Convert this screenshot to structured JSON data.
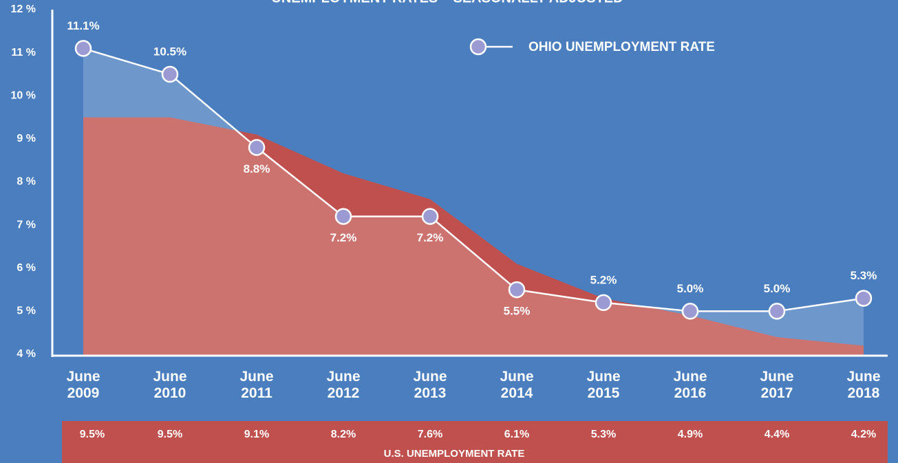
{
  "chart_data": {
    "type": "area-line",
    "title": "UNEMPLOYMENT RATES – SEASONALLY ADJUSTED",
    "categories": [
      "June 2009",
      "June 2010",
      "June 2011",
      "June 2012",
      "June 2013",
      "June 2014",
      "June 2015",
      "June 2016",
      "June 2017",
      "June 2018"
    ],
    "series": [
      {
        "name": "OHIO UNEMPLOYMENT RATE",
        "color": "#9c9ad2",
        "values": [
          11.1,
          10.5,
          8.8,
          7.2,
          7.2,
          5.5,
          5.2,
          5.0,
          5.0,
          5.3
        ],
        "value_labels": [
          "11.1%",
          "10.5%",
          "8.8%",
          "7.2%",
          "7.2%",
          "5.5%",
          "5.2%",
          "5.0%",
          "5.0%",
          "5.3%"
        ]
      },
      {
        "name": "U.S. UNEMPLOYMENT RATE",
        "color": "#c0504d",
        "values": [
          9.5,
          9.5,
          9.1,
          8.2,
          7.6,
          6.1,
          5.3,
          4.9,
          4.4,
          4.2
        ],
        "value_labels": [
          "9.5%",
          "9.5%",
          "9.1%",
          "8.2%",
          "7.6%",
          "6.1%",
          "5.3%",
          "4.9%",
          "4.4%",
          "4.2%"
        ]
      }
    ],
    "ylim": [
      4,
      12
    ],
    "yticks": [
      {
        "value": 4,
        "label": "4 %"
      },
      {
        "value": 5,
        "label": "5 %"
      },
      {
        "value": 6,
        "label": "6 %"
      },
      {
        "value": 7,
        "label": "7 %"
      },
      {
        "value": 8,
        "label": "8 %"
      },
      {
        "value": 9,
        "label": "9 %"
      },
      {
        "value": 10,
        "label": "10 %"
      },
      {
        "value": 11,
        "label": "11 %"
      },
      {
        "value": 12,
        "label": "12 %"
      }
    ]
  }
}
